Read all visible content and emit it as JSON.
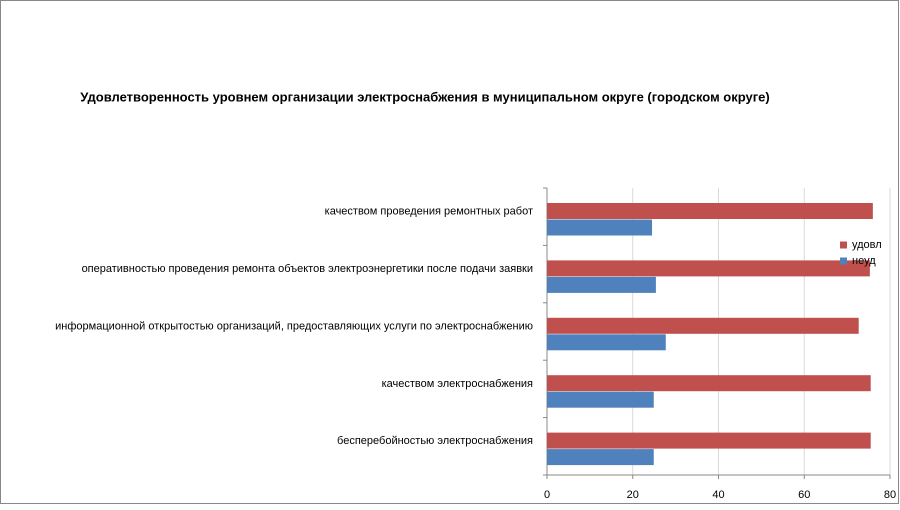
{
  "chart_data": {
    "type": "bar",
    "orientation": "horizontal",
    "title": "Удовлетворенность уровнем организации электроснабжения в муниципальном округе (городском округе)",
    "categories": [
      "качеством проведения ремонтных работ",
      "оперативностью проведения ремонта объектов электроэнергетики после подачи заявки",
      "информационной открытостью организаций, предоставляющих услуги по электроснабжению",
      "качеством электроснабжения",
      "бесперебойностью электроснабжения"
    ],
    "series": [
      {
        "name": "удовл",
        "color": "#c0504d",
        "values": [
          76,
          75.3,
          72.7,
          75.5,
          75.5
        ]
      },
      {
        "name": "неуд",
        "color": "#4f81bd",
        "values": [
          24.5,
          25.4,
          27.7,
          24.9,
          24.9
        ]
      }
    ],
    "xlim": [
      0,
      80
    ],
    "xticks": [
      0,
      20,
      40,
      60,
      80
    ],
    "grid": true,
    "legend": "right"
  }
}
